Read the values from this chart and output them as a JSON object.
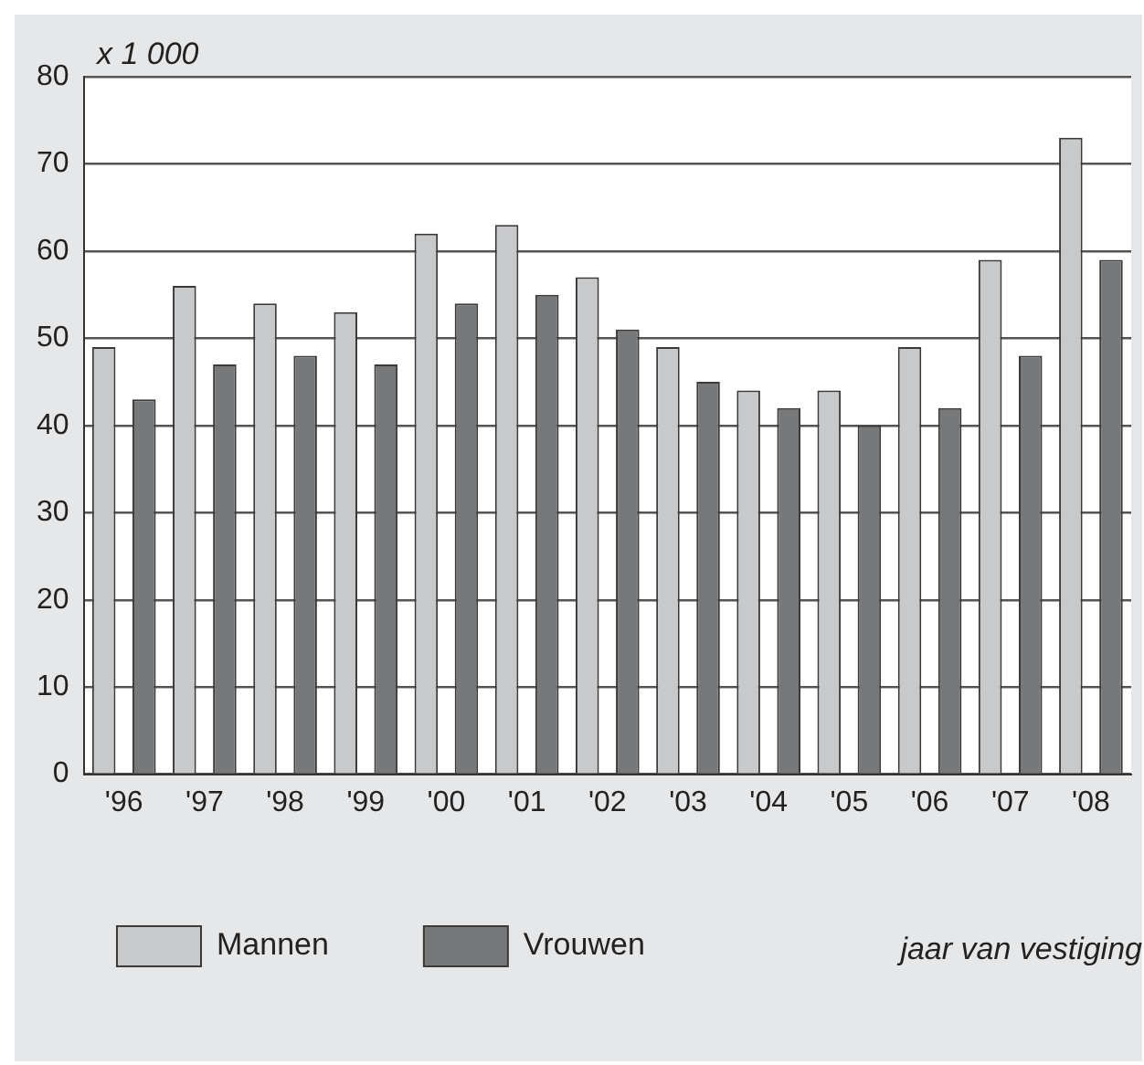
{
  "chart_data": {
    "type": "bar",
    "ylabel": "x 1 000",
    "xlabel": "jaar van vestiging",
    "categories": [
      "'96",
      "'97",
      "'98",
      "'99",
      "'00",
      "'01",
      "'02",
      "'03",
      "'04",
      "'05",
      "'06",
      "'07",
      "'08"
    ],
    "series": [
      {
        "name": "Mannen",
        "color": "#c8c9cb",
        "values": [
          49,
          56,
          54,
          53,
          62,
          63,
          57,
          49,
          44,
          44,
          49,
          59,
          73
        ]
      },
      {
        "name": "Vrouwen",
        "color": "#77787a",
        "values": [
          43,
          47,
          48,
          47,
          54,
          55,
          51,
          45,
          42,
          40,
          42,
          48,
          59
        ]
      }
    ],
    "ylim": [
      0,
      80
    ],
    "yticks": [
      0,
      10,
      20,
      30,
      40,
      50,
      60,
      70,
      80
    ],
    "grid": "y",
    "legend": "bottom left"
  }
}
